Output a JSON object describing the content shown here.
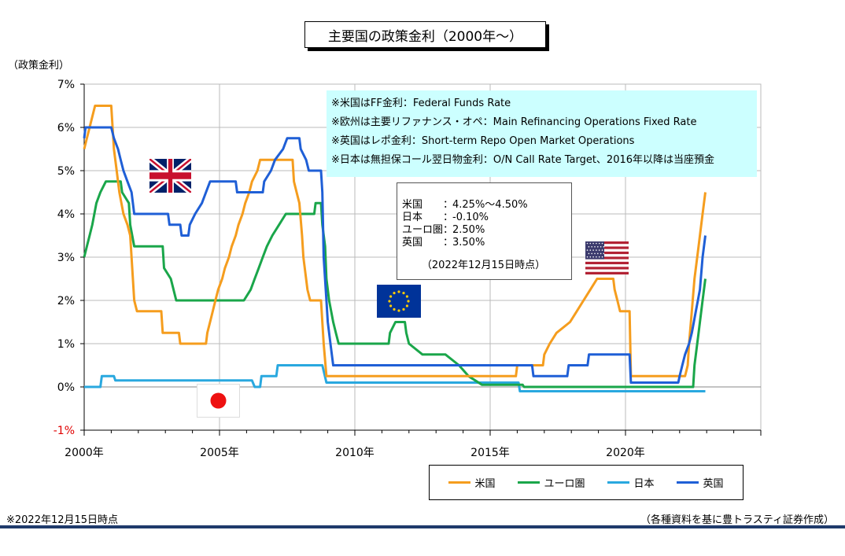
{
  "title": "主要国の政策金利（2000年～）",
  "ylabel": "（政策金利）",
  "notes": [
    "※米国はFF金利：Federal Funds Rate",
    "※欧州は主要リファナンス・オペ：Main Refinancing Operations Fixed Rate",
    "※英国はレポ金利：Short-term Repo Open Market Operations",
    "※日本は無担保コール翌日物金利：O/N Call Rate Target、2016年以降は当座預金"
  ],
  "current": {
    "rows": [
      {
        "country": "米国",
        "colon": "：",
        "value": "4.25%～4.50%"
      },
      {
        "country": "日本",
        "colon": "：",
        "value": "-0.10%"
      },
      {
        "country": "ユーロ圏",
        "colon": "：",
        "value": "2.50%"
      },
      {
        "country": "英国",
        "colon": "：",
        "value": "3.50%"
      }
    ],
    "asof": "（2022年12月15日時点）"
  },
  "footer_left": "※2022年12月15日時点",
  "footer_right": "（各種資料を基に豊トラスティ証券作成）",
  "legend": [
    {
      "label": "米国",
      "color": "#f59d1e"
    },
    {
      "label": "ユーロ圏",
      "color": "#1aa64a"
    },
    {
      "label": "日本",
      "color": "#29a8df"
    },
    {
      "label": "英国",
      "color": "#1f5fd6"
    }
  ],
  "chart_data": {
    "type": "line",
    "x_unit": "year",
    "xlim": [
      2000,
      2025
    ],
    "ylim": [
      -1,
      7
    ],
    "yticks": [
      -1,
      0,
      1,
      2,
      3,
      4,
      5,
      6,
      7
    ],
    "ytick_labels": [
      "-1%",
      "0%",
      "1%",
      "2%",
      "3%",
      "4%",
      "5%",
      "6%",
      "7%"
    ],
    "xticks": [
      2000,
      2005,
      2010,
      2015,
      2020
    ],
    "xtick_labels": [
      "2000年",
      "2005年",
      "2010年",
      "2015年",
      "2020年"
    ],
    "grid": true,
    "series": [
      {
        "name": "米国",
        "color": "#f59d1e",
        "points": [
          [
            2000.0,
            5.5
          ],
          [
            2000.1,
            5.75
          ],
          [
            2000.2,
            6.0
          ],
          [
            2000.4,
            6.5
          ],
          [
            2001.0,
            6.5
          ],
          [
            2001.05,
            6.0
          ],
          [
            2001.1,
            5.5
          ],
          [
            2001.2,
            5.0
          ],
          [
            2001.3,
            4.5
          ],
          [
            2001.45,
            4.0
          ],
          [
            2001.6,
            3.75
          ],
          [
            2001.7,
            3.5
          ],
          [
            2001.75,
            3.0
          ],
          [
            2001.8,
            2.5
          ],
          [
            2001.85,
            2.0
          ],
          [
            2001.95,
            1.75
          ],
          [
            2002.85,
            1.75
          ],
          [
            2002.9,
            1.25
          ],
          [
            2003.5,
            1.25
          ],
          [
            2003.55,
            1.0
          ],
          [
            2004.5,
            1.0
          ],
          [
            2004.55,
            1.25
          ],
          [
            2004.65,
            1.5
          ],
          [
            2004.75,
            1.75
          ],
          [
            2004.85,
            2.0
          ],
          [
            2004.95,
            2.25
          ],
          [
            2005.1,
            2.5
          ],
          [
            2005.2,
            2.75
          ],
          [
            2005.35,
            3.0
          ],
          [
            2005.45,
            3.25
          ],
          [
            2005.6,
            3.5
          ],
          [
            2005.7,
            3.75
          ],
          [
            2005.85,
            4.0
          ],
          [
            2005.95,
            4.25
          ],
          [
            2006.1,
            4.5
          ],
          [
            2006.2,
            4.75
          ],
          [
            2006.4,
            5.0
          ],
          [
            2006.5,
            5.25
          ],
          [
            2007.7,
            5.25
          ],
          [
            2007.75,
            4.75
          ],
          [
            2007.85,
            4.5
          ],
          [
            2007.95,
            4.25
          ],
          [
            2008.05,
            3.5
          ],
          [
            2008.1,
            3.0
          ],
          [
            2008.25,
            2.25
          ],
          [
            2008.35,
            2.0
          ],
          [
            2008.75,
            2.0
          ],
          [
            2008.8,
            1.5
          ],
          [
            2008.85,
            1.0
          ],
          [
            2008.95,
            0.25
          ],
          [
            2015.95,
            0.25
          ],
          [
            2016.0,
            0.5
          ],
          [
            2016.95,
            0.5
          ],
          [
            2017.0,
            0.75
          ],
          [
            2017.2,
            1.0
          ],
          [
            2017.45,
            1.25
          ],
          [
            2017.95,
            1.5
          ],
          [
            2018.2,
            1.75
          ],
          [
            2018.45,
            2.0
          ],
          [
            2018.7,
            2.25
          ],
          [
            2018.95,
            2.5
          ],
          [
            2019.55,
            2.5
          ],
          [
            2019.6,
            2.25
          ],
          [
            2019.7,
            2.0
          ],
          [
            2019.8,
            1.75
          ],
          [
            2020.15,
            1.75
          ],
          [
            2020.2,
            0.25
          ],
          [
            2022.2,
            0.25
          ],
          [
            2022.3,
            0.5
          ],
          [
            2022.35,
            1.0
          ],
          [
            2022.45,
            1.75
          ],
          [
            2022.55,
            2.5
          ],
          [
            2022.7,
            3.25
          ],
          [
            2022.85,
            4.0
          ],
          [
            2022.95,
            4.5
          ]
        ]
      },
      {
        "name": "ユーロ圏",
        "color": "#1aa64a",
        "points": [
          [
            2000.0,
            3.0
          ],
          [
            2000.1,
            3.25
          ],
          [
            2000.2,
            3.5
          ],
          [
            2000.3,
            3.75
          ],
          [
            2000.45,
            4.25
          ],
          [
            2000.6,
            4.5
          ],
          [
            2000.8,
            4.75
          ],
          [
            2001.35,
            4.75
          ],
          [
            2001.4,
            4.5
          ],
          [
            2001.65,
            4.25
          ],
          [
            2001.7,
            3.75
          ],
          [
            2001.85,
            3.25
          ],
          [
            2002.9,
            3.25
          ],
          [
            2002.95,
            2.75
          ],
          [
            2003.2,
            2.5
          ],
          [
            2003.4,
            2.0
          ],
          [
            2005.9,
            2.0
          ],
          [
            2006.15,
            2.25
          ],
          [
            2006.3,
            2.5
          ],
          [
            2006.45,
            2.75
          ],
          [
            2006.6,
            3.0
          ],
          [
            2006.75,
            3.25
          ],
          [
            2006.95,
            3.5
          ],
          [
            2007.2,
            3.75
          ],
          [
            2007.45,
            4.0
          ],
          [
            2008.5,
            4.0
          ],
          [
            2008.55,
            4.25
          ],
          [
            2008.75,
            4.25
          ],
          [
            2008.8,
            3.75
          ],
          [
            2008.9,
            3.25
          ],
          [
            2008.95,
            2.5
          ],
          [
            2009.05,
            2.0
          ],
          [
            2009.2,
            1.5
          ],
          [
            2009.3,
            1.25
          ],
          [
            2009.4,
            1.0
          ],
          [
            2011.25,
            1.0
          ],
          [
            2011.3,
            1.25
          ],
          [
            2011.5,
            1.5
          ],
          [
            2011.85,
            1.5
          ],
          [
            2011.9,
            1.25
          ],
          [
            2012.0,
            1.0
          ],
          [
            2012.5,
            0.75
          ],
          [
            2013.35,
            0.75
          ],
          [
            2013.85,
            0.5
          ],
          [
            2014.2,
            0.25
          ],
          [
            2014.7,
            0.05
          ],
          [
            2016.2,
            0.05
          ],
          [
            2016.25,
            0.0
          ],
          [
            2022.5,
            0.0
          ],
          [
            2022.55,
            0.5
          ],
          [
            2022.7,
            1.25
          ],
          [
            2022.85,
            2.0
          ],
          [
            2022.95,
            2.5
          ]
        ]
      },
      {
        "name": "日本",
        "color": "#29a8df",
        "points": [
          [
            2000.0,
            0.0
          ],
          [
            2000.6,
            0.0
          ],
          [
            2000.65,
            0.25
          ],
          [
            2001.1,
            0.25
          ],
          [
            2001.15,
            0.15
          ],
          [
            2006.2,
            0.15
          ],
          [
            2006.3,
            0.0
          ],
          [
            2006.5,
            0.0
          ],
          [
            2006.55,
            0.25
          ],
          [
            2007.1,
            0.25
          ],
          [
            2007.15,
            0.5
          ],
          [
            2008.8,
            0.5
          ],
          [
            2008.95,
            0.1
          ],
          [
            2016.05,
            0.1
          ],
          [
            2016.1,
            -0.1
          ],
          [
            2022.95,
            -0.1
          ]
        ]
      },
      {
        "name": "英国",
        "color": "#1f5fd6",
        "points": [
          [
            2000.0,
            5.75
          ],
          [
            2000.05,
            6.0
          ],
          [
            2001.0,
            6.0
          ],
          [
            2001.1,
            5.75
          ],
          [
            2001.25,
            5.5
          ],
          [
            2001.35,
            5.25
          ],
          [
            2001.45,
            5.0
          ],
          [
            2001.6,
            4.75
          ],
          [
            2001.75,
            4.5
          ],
          [
            2001.85,
            4.0
          ],
          [
            2003.1,
            4.0
          ],
          [
            2003.15,
            3.75
          ],
          [
            2003.55,
            3.75
          ],
          [
            2003.6,
            3.5
          ],
          [
            2003.85,
            3.5
          ],
          [
            2003.9,
            3.75
          ],
          [
            2004.1,
            4.0
          ],
          [
            2004.35,
            4.25
          ],
          [
            2004.5,
            4.5
          ],
          [
            2004.65,
            4.75
          ],
          [
            2005.6,
            4.75
          ],
          [
            2005.65,
            4.5
          ],
          [
            2006.6,
            4.5
          ],
          [
            2006.65,
            4.75
          ],
          [
            2006.9,
            5.0
          ],
          [
            2007.05,
            5.25
          ],
          [
            2007.35,
            5.5
          ],
          [
            2007.5,
            5.75
          ],
          [
            2007.95,
            5.75
          ],
          [
            2008.0,
            5.5
          ],
          [
            2008.2,
            5.25
          ],
          [
            2008.3,
            5.0
          ],
          [
            2008.75,
            5.0
          ],
          [
            2008.8,
            4.5
          ],
          [
            2008.85,
            3.0
          ],
          [
            2008.95,
            2.0
          ],
          [
            2009.0,
            1.5
          ],
          [
            2009.1,
            1.0
          ],
          [
            2009.2,
            0.5
          ],
          [
            2016.55,
            0.5
          ],
          [
            2016.6,
            0.25
          ],
          [
            2017.85,
            0.25
          ],
          [
            2017.9,
            0.5
          ],
          [
            2018.6,
            0.5
          ],
          [
            2018.65,
            0.75
          ],
          [
            2020.15,
            0.75
          ],
          [
            2020.2,
            0.1
          ],
          [
            2021.95,
            0.1
          ],
          [
            2022.0,
            0.25
          ],
          [
            2022.1,
            0.5
          ],
          [
            2022.2,
            0.75
          ],
          [
            2022.35,
            1.0
          ],
          [
            2022.45,
            1.25
          ],
          [
            2022.6,
            1.75
          ],
          [
            2022.75,
            2.25
          ],
          [
            2022.85,
            3.0
          ],
          [
            2022.95,
            3.5
          ]
        ]
      }
    ]
  }
}
